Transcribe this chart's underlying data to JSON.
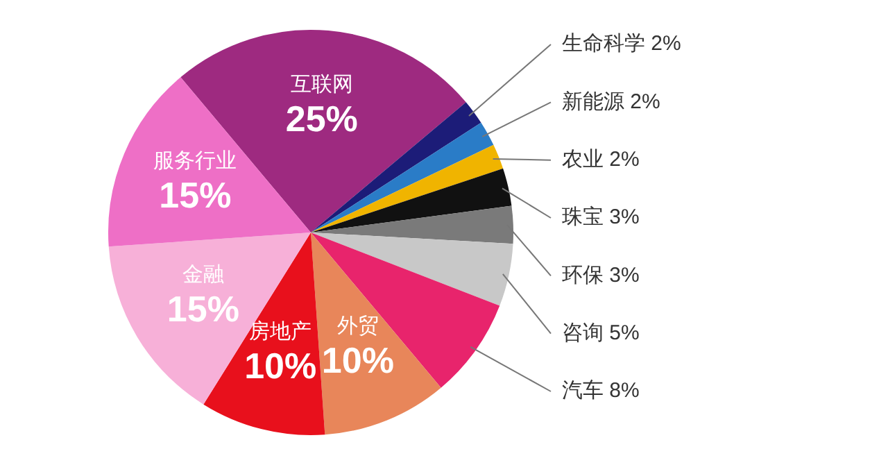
{
  "chart_data": {
    "type": "pie",
    "categories": [
      "互联网",
      "生命科学",
      "新能源",
      "农业",
      "珠宝",
      "环保",
      "咨询",
      "汽车",
      "外贸",
      "房地产",
      "金融",
      "服务行业"
    ],
    "values": [
      25,
      2,
      2,
      2,
      3,
      3,
      5,
      8,
      10,
      10,
      15,
      15
    ],
    "value_labels": [
      "25%",
      "2%",
      "2%",
      "2%",
      "3%",
      "3%",
      "5%",
      "8%",
      "10%",
      "10%",
      "15%",
      "15%"
    ],
    "colors": [
      "#9e2a80",
      "#1c1c78",
      "#2a7cc7",
      "#f0b400",
      "#111111",
      "#7a7a7a",
      "#c8c8c8",
      "#e8246c",
      "#e8865a",
      "#e8101c",
      "#f7b0d8",
      "#ee6fc6"
    ],
    "legend": false
  }
}
